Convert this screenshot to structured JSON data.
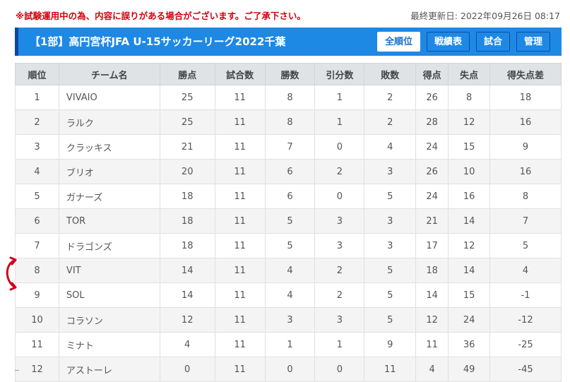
{
  "notice": "※試験運用中の為、内容に誤りがある場合がございます。ご了承下さい。",
  "last_updated": "最終更新日: 2022年09月26日 08:17",
  "header": {
    "title": "【1部】高円宮杯JFA U-15サッカーリーグ2022千葉",
    "buttons": [
      "全順位",
      "戦績表",
      "試合",
      "管理"
    ]
  },
  "table": {
    "columns": [
      "順位",
      "チーム名",
      "勝点",
      "試合数",
      "勝数",
      "引分数",
      "敗数",
      "得点",
      "失点",
      "得失点差"
    ],
    "rows": [
      [
        "1",
        "VIVAIO",
        "25",
        "11",
        "8",
        "1",
        "2",
        "26",
        "8",
        "18"
      ],
      [
        "2",
        "ラルク",
        "25",
        "11",
        "8",
        "1",
        "2",
        "28",
        "12",
        "16"
      ],
      [
        "3",
        "クラッキス",
        "21",
        "11",
        "7",
        "0",
        "4",
        "24",
        "15",
        "9"
      ],
      [
        "4",
        "ブリオ",
        "20",
        "11",
        "6",
        "2",
        "3",
        "26",
        "10",
        "16"
      ],
      [
        "5",
        "ガナーズ",
        "18",
        "11",
        "6",
        "0",
        "5",
        "24",
        "16",
        "8"
      ],
      [
        "6",
        "TOR",
        "18",
        "11",
        "5",
        "3",
        "3",
        "21",
        "14",
        "7"
      ],
      [
        "7",
        "ドラゴンズ",
        "18",
        "11",
        "5",
        "3",
        "3",
        "17",
        "12",
        "5"
      ],
      [
        "8",
        "VIT",
        "14",
        "11",
        "4",
        "2",
        "5",
        "18",
        "14",
        "4"
      ],
      [
        "9",
        "SOL",
        "14",
        "11",
        "4",
        "2",
        "5",
        "14",
        "15",
        "-1"
      ],
      [
        "10",
        "コラソン",
        "12",
        "11",
        "3",
        "3",
        "5",
        "12",
        "24",
        "-12"
      ],
      [
        "11",
        "ミナト",
        "4",
        "11",
        "1",
        "1",
        "9",
        "11",
        "36",
        "-25"
      ],
      [
        "12",
        "アストーレ",
        "0",
        "11",
        "0",
        "0",
        "11",
        "4",
        "49",
        "-45"
      ]
    ]
  },
  "colors": {
    "header_bg": "#1e88e5",
    "notice": "#d4000d",
    "arrow": "#d0021b"
  }
}
